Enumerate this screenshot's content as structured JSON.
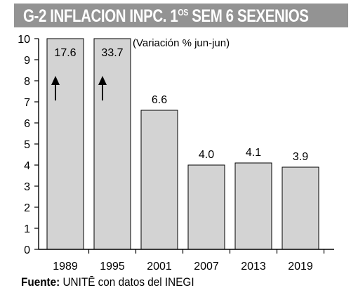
{
  "title_main": "G-2 INFLACION INPC. 1",
  "title_sup": "OS",
  "title_tail": " SEM 6 SEXENIOS",
  "source_label": "Fuente:",
  "source_text": " UNITĒ con datos del INEGI",
  "colors": {
    "bar": "#d3d3d3",
    "header": "#939393",
    "axis": "#000000"
  },
  "chart_data": {
    "type": "bar",
    "title": "",
    "subtitle": "(Variación % jun-jun)",
    "xlabel": "",
    "ylabel": "",
    "categories": [
      "1989",
      "1995",
      "2001",
      "2007",
      "2013",
      "2019"
    ],
    "values": [
      17.6,
      33.7,
      6.6,
      4.0,
      4.1,
      3.9
    ],
    "data_labels": [
      "17.6",
      "33.7",
      "6.6",
      "4.0",
      "4.1",
      "3.9"
    ],
    "truncated_with_arrow": [
      true,
      true,
      false,
      false,
      false,
      false
    ],
    "ylim": [
      0,
      10
    ],
    "yticks": [
      "0",
      "1",
      "2",
      "3",
      "4",
      "5",
      "6",
      "7",
      "8",
      "9",
      "10"
    ],
    "grid": false,
    "legend": "none"
  }
}
